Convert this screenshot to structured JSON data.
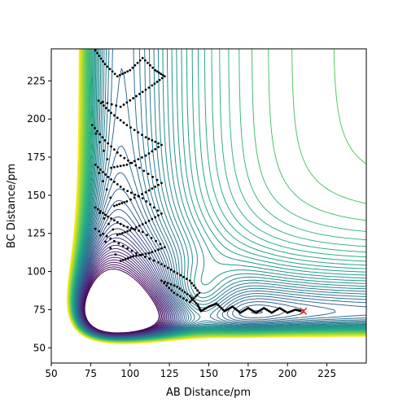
{
  "chart_data": {
    "type": "contour",
    "title": "",
    "xlabel": "AB Distance/pm",
    "ylabel": "BC Distance/pm",
    "xlim": [
      50,
      250
    ],
    "ylim": [
      40,
      246
    ],
    "xticks": [
      50,
      75,
      100,
      125,
      150,
      175,
      200,
      225
    ],
    "yticks": [
      50,
      75,
      100,
      125,
      150,
      175,
      200,
      225
    ],
    "colormap": "viridis",
    "grid": false,
    "legend": "none",
    "trajectory_color": "#000000",
    "trajectory": [
      [
        78,
        245
      ],
      [
        84,
        236
      ],
      [
        92,
        228
      ],
      [
        100,
        232
      ],
      [
        108,
        240
      ],
      [
        116,
        232
      ],
      [
        122,
        228
      ],
      [
        114,
        222
      ],
      [
        104,
        215
      ],
      [
        94,
        208
      ],
      [
        80,
        212
      ],
      [
        88,
        204
      ],
      [
        98,
        196
      ],
      [
        110,
        188
      ],
      [
        120,
        183
      ],
      [
        110,
        176
      ],
      [
        98,
        170
      ],
      [
        88,
        168
      ],
      [
        76,
        196
      ],
      [
        84,
        186
      ],
      [
        94,
        176
      ],
      [
        106,
        168
      ],
      [
        120,
        158
      ],
      [
        110,
        152
      ],
      [
        98,
        146
      ],
      [
        90,
        143
      ],
      [
        78,
        170
      ],
      [
        86,
        162
      ],
      [
        96,
        154
      ],
      [
        108,
        148
      ],
      [
        120,
        138
      ],
      [
        110,
        132
      ],
      [
        100,
        127
      ],
      [
        92,
        124
      ],
      [
        78,
        142
      ],
      [
        86,
        136
      ],
      [
        96,
        130
      ],
      [
        108,
        126
      ],
      [
        122,
        116
      ],
      [
        112,
        112
      ],
      [
        102,
        110
      ],
      [
        94,
        107
      ],
      [
        78,
        128
      ],
      [
        90,
        120
      ],
      [
        104,
        112
      ],
      [
        118,
        106
      ],
      [
        128,
        100
      ],
      [
        138,
        94
      ],
      [
        144,
        86
      ],
      [
        138,
        80
      ],
      [
        128,
        86
      ],
      [
        120,
        94
      ],
      [
        130,
        90
      ],
      [
        138,
        84
      ],
      [
        143,
        78
      ],
      [
        145,
        74
      ],
      [
        150,
        77
      ],
      [
        155,
        79
      ],
      [
        160,
        74
      ],
      [
        165,
        77
      ],
      [
        170,
        73
      ],
      [
        175,
        76
      ],
      [
        180,
        73
      ],
      [
        185,
        76
      ],
      [
        190,
        73
      ],
      [
        195,
        76
      ],
      [
        200,
        73
      ],
      [
        205,
        75
      ],
      [
        209,
        74
      ]
    ],
    "end_marker": {
      "x": 210,
      "y": 74,
      "symbol": "x",
      "color": "#d62728"
    }
  }
}
